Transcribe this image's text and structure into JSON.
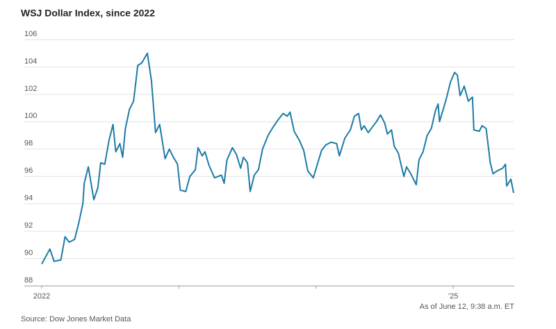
{
  "chart_data": {
    "type": "line",
    "title": "WSJ Dollar Index, since 2022",
    "note": "As of June 12, 9:38 a.m. ET",
    "source": "Source: Dow Jones Market Data",
    "color": "#1b7aa6",
    "grid": true,
    "xlim": [
      2022,
      2025.44
    ],
    "xticks": [
      2022,
      {
        "value": 2023,
        "label": null
      },
      {
        "value": 2024,
        "label": null
      },
      {
        "value": 2025,
        "label": "'25"
      }
    ],
    "ylim": [
      88,
      106
    ],
    "yticks": [
      88,
      90,
      92,
      94,
      96,
      98,
      100,
      102,
      104,
      106
    ],
    "x": [
      2022.0,
      2022.06,
      2022.09,
      2022.14,
      2022.17,
      2022.2,
      2022.24,
      2022.27,
      2022.3,
      2022.31,
      2022.34,
      2022.38,
      2022.41,
      2022.43,
      2022.46,
      2022.49,
      2022.52,
      2022.54,
      2022.57,
      2022.59,
      2022.61,
      2022.64,
      2022.67,
      2022.7,
      2022.73,
      2022.77,
      2022.8,
      2022.83,
      2022.86,
      2022.9,
      2022.93,
      2022.96,
      2022.99,
      2023.01,
      2023.05,
      2023.08,
      2023.12,
      2023.14,
      2023.17,
      2023.19,
      2023.22,
      2023.26,
      2023.31,
      2023.33,
      2023.35,
      2023.39,
      2023.42,
      2023.45,
      2023.47,
      2023.5,
      2023.52,
      2023.55,
      2023.58,
      2023.61,
      2023.65,
      2023.68,
      2023.72,
      2023.76,
      2023.79,
      2023.81,
      2023.84,
      2023.88,
      2023.91,
      2023.94,
      2023.98,
      2024.01,
      2024.04,
      2024.07,
      2024.11,
      2024.15,
      2024.17,
      2024.21,
      2024.25,
      2024.28,
      2024.31,
      2024.33,
      2024.35,
      2024.38,
      2024.41,
      2024.44,
      2024.47,
      2024.5,
      2024.52,
      2024.55,
      2024.57,
      2024.6,
      2024.64,
      2024.66,
      2024.69,
      2024.73,
      2024.75,
      2024.78,
      2024.81,
      2024.84,
      2024.87,
      2024.89,
      2024.9,
      2024.93,
      2024.95,
      2024.98,
      2025.01,
      2025.03,
      2025.05,
      2025.08,
      2025.11,
      2025.14,
      2025.15,
      2025.19,
      2025.21,
      2025.24,
      2025.27,
      2025.29,
      2025.32,
      2025.36,
      2025.38,
      2025.39,
      2025.42,
      2025.44
    ],
    "series": [
      {
        "name": "WSJ Dollar Index",
        "color": "#1b7aa6",
        "values": [
          89.6,
          90.7,
          89.8,
          89.9,
          91.6,
          91.2,
          91.4,
          92.6,
          94.0,
          95.5,
          96.7,
          94.3,
          95.2,
          97.0,
          96.9,
          98.6,
          99.8,
          97.8,
          98.4,
          97.4,
          99.5,
          100.9,
          101.5,
          104.1,
          104.3,
          105.0,
          103.0,
          99.2,
          99.8,
          97.3,
          98.0,
          97.4,
          96.9,
          95.0,
          94.9,
          96.0,
          96.5,
          98.1,
          97.5,
          97.8,
          96.8,
          95.9,
          96.1,
          95.5,
          97.2,
          98.1,
          97.6,
          96.6,
          97.4,
          97.0,
          94.9,
          96.1,
          96.5,
          98.0,
          99.0,
          99.5,
          100.1,
          100.6,
          100.4,
          100.7,
          99.3,
          98.6,
          97.9,
          96.4,
          95.9,
          96.9,
          97.9,
          98.3,
          98.5,
          98.4,
          97.5,
          98.8,
          99.4,
          100.4,
          100.6,
          99.4,
          99.7,
          99.2,
          99.6,
          100.0,
          100.5,
          99.9,
          99.1,
          99.4,
          98.2,
          97.7,
          96.0,
          96.7,
          96.2,
          95.4,
          97.2,
          97.8,
          99.0,
          99.5,
          100.8,
          101.3,
          100.0,
          101.0,
          101.7,
          102.9,
          103.6,
          103.4,
          101.9,
          102.6,
          101.5,
          101.8,
          99.4,
          99.3,
          99.7,
          99.5,
          97.0,
          96.2,
          96.4,
          96.6,
          96.9,
          95.3,
          95.8,
          94.8
        ]
      }
    ]
  }
}
